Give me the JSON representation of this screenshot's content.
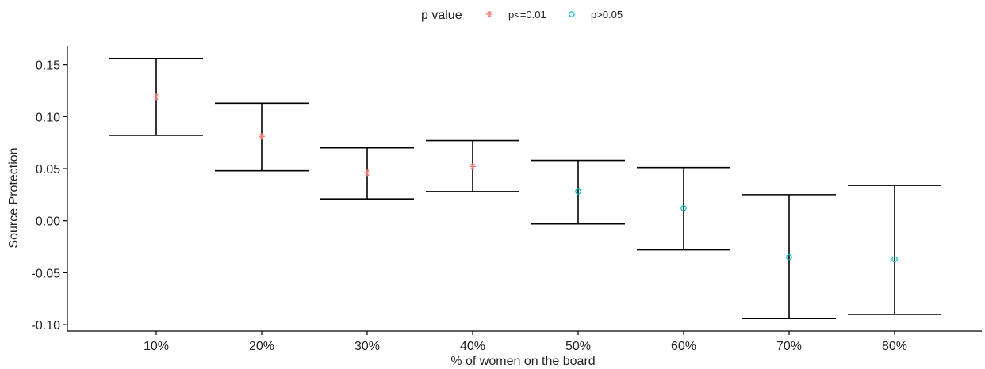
{
  "chart_data": {
    "type": "scatter",
    "subtype": "point-with-errorbars",
    "xlabel": "% of women on the board",
    "ylabel": "Source Protection",
    "categories": [
      "10%",
      "20%",
      "30%",
      "40%",
      "50%",
      "60%",
      "70%",
      "80%"
    ],
    "estimate": [
      0.119,
      0.081,
      0.046,
      0.052,
      0.028,
      0.012,
      -0.035,
      -0.037
    ],
    "lower": [
      0.082,
      0.048,
      0.021,
      0.028,
      -0.003,
      -0.028,
      -0.094,
      -0.09
    ],
    "upper": [
      0.156,
      0.113,
      0.07,
      0.077,
      0.058,
      0.051,
      0.025,
      0.034
    ],
    "group": [
      "p<=0.01",
      "p<=0.01",
      "p<=0.01",
      "p<=0.01",
      "p>0.05",
      "p>0.05",
      "p>0.05",
      "p>0.05"
    ],
    "yticks": [
      0.15,
      0.1,
      0.05,
      0.0,
      -0.05,
      -0.1
    ],
    "ytick_labels": [
      "0.15",
      "0.10",
      "0.05",
      "0.00",
      "-0.05",
      "-0.10"
    ],
    "ylim": [
      -0.106,
      0.168
    ],
    "grid": false,
    "legend": {
      "title": "p value",
      "position": "top",
      "items": [
        {
          "label": "p<=0.01",
          "symbol": "asterisk",
          "color": "#F8766D"
        },
        {
          "label": "p>0.05",
          "symbol": "open-circle",
          "color": "#00BFC4"
        }
      ]
    },
    "errorbar_color": "#000000"
  }
}
